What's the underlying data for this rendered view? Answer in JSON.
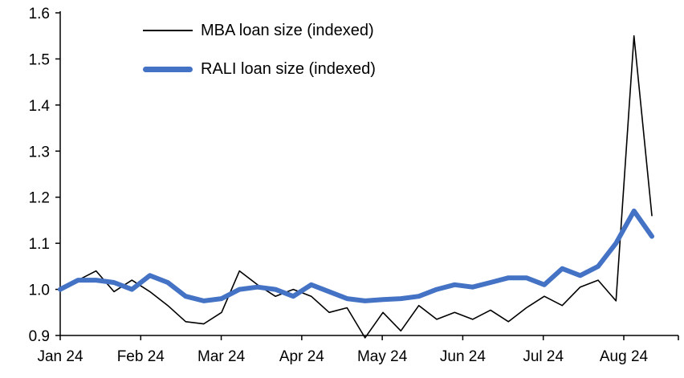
{
  "chart_data": {
    "type": "line",
    "title": "",
    "xlabel": "",
    "ylabel": "",
    "grid": false,
    "legend_position": "top-left-inside",
    "ylim": [
      0.9,
      1.6
    ],
    "y_tick_labels": [
      "0.9",
      "1.0",
      "1.1",
      "1.2",
      "1.3",
      "1.4",
      "1.5",
      "1.6"
    ],
    "x_tick_labels": [
      "Jan 24",
      "Feb 24",
      "Mar 24",
      "Apr 24",
      "May 24",
      "Jun 24",
      "Jul 24",
      "Aug 24"
    ],
    "axis_color": "#000000",
    "series": [
      {
        "name": "MBA loan size (indexed)",
        "color": "#000000",
        "stroke_width": 1.6,
        "values": [
          1.0,
          1.02,
          1.04,
          0.995,
          1.02,
          0.995,
          0.965,
          0.93,
          0.925,
          0.95,
          1.04,
          1.01,
          0.985,
          1.0,
          0.985,
          0.95,
          0.96,
          0.895,
          0.95,
          0.91,
          0.965,
          0.935,
          0.95,
          0.935,
          0.955,
          0.93,
          0.96,
          0.985,
          0.965,
          1.005,
          1.02,
          0.975,
          1.55,
          1.16
        ]
      },
      {
        "name": "RALI loan size (indexed)",
        "color": "#4472C4",
        "stroke_width": 6,
        "values": [
          1.0,
          1.02,
          1.02,
          1.015,
          1.0,
          1.03,
          1.015,
          0.985,
          0.975,
          0.98,
          1.0,
          1.005,
          1.0,
          0.985,
          1.01,
          0.995,
          0.98,
          0.975,
          0.978,
          0.98,
          0.985,
          1.0,
          1.01,
          1.005,
          1.015,
          1.025,
          1.025,
          1.01,
          1.045,
          1.03,
          1.05,
          1.1,
          1.17,
          1.115
        ]
      }
    ]
  }
}
